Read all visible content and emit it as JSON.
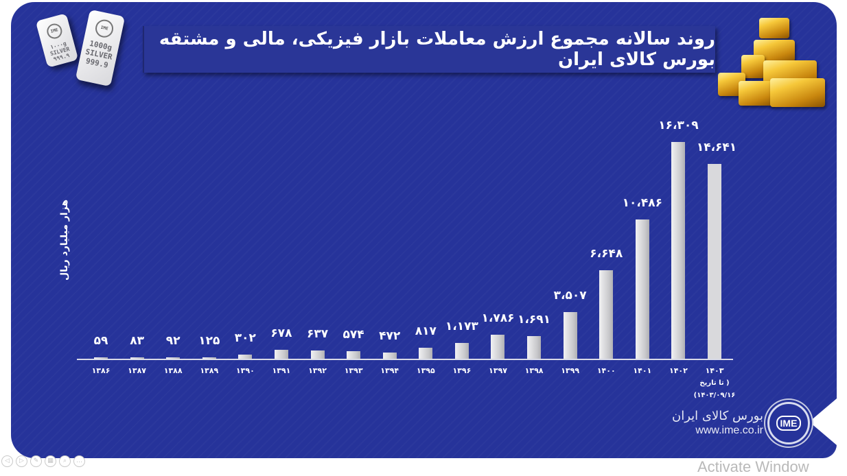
{
  "title": "روند سالانه مجموع ارزش معاملات بازار فیزیکی، مالی و مشتقه بورس کالای ایران",
  "decor": {
    "silver_bar_small": "۱۰۰۰g SILVER ۹۹۹.۹",
    "silver_bar_large_lines": [
      "1000g",
      "SILVER",
      "999.9"
    ],
    "silver_logo": "IME",
    "gold_bars_icon": "gold-bars"
  },
  "chart_data": {
    "type": "bar",
    "title": "روند سالانه مجموع ارزش معاملات بازار فیزیکی، مالی و مشتقه بورس کالای ایران",
    "xlabel": "",
    "ylabel": "هزار میلیارد ریال",
    "categories": [
      "۱۳۸۶",
      "۱۳۸۷",
      "۱۳۸۸",
      "۱۳۸۹",
      "۱۳۹۰",
      "۱۳۹۱",
      "۱۳۹۲",
      "۱۳۹۳",
      "۱۳۹۴",
      "۱۳۹۵",
      "۱۳۹۶",
      "۱۳۹۷",
      "۱۳۹۸",
      "۱۳۹۹",
      "۱۴۰۰",
      "۱۴۰۱",
      "۱۴۰۲",
      "۱۴۰۳"
    ],
    "categories_latin": [
      "1386",
      "1387",
      "1388",
      "1389",
      "1390",
      "1391",
      "1392",
      "1393",
      "1394",
      "1395",
      "1396",
      "1397",
      "1398",
      "1399",
      "1400",
      "1401",
      "1402",
      "1403"
    ],
    "values": [
      59,
      83,
      92,
      125,
      302,
      678,
      637,
      574,
      472,
      817,
      1173,
      1786,
      1691,
      3507,
      6648,
      10486,
      16309,
      14641
    ],
    "value_labels": [
      "۵۹",
      "۸۳",
      "۹۲",
      "۱۲۵",
      "۳۰۲",
      "۶۷۸",
      "۶۳۷",
      "۵۷۴",
      "۴۷۲",
      "۸۱۷",
      "۱،۱۷۳",
      "۱،۷۸۶",
      "۱،۶۹۱",
      "۳،۵۰۷",
      "۶،۶۴۸",
      "۱۰،۴۸۶",
      "۱۶،۳۰۹",
      "۱۴،۶۴۱"
    ],
    "last_category_note": [
      "( تا تاریخ",
      "۱۴۰۳/۰۹/۱۶)"
    ],
    "ylim": [
      0,
      17000
    ],
    "grid": false,
    "legend": null,
    "bar_color": "#d0d0d4",
    "background_color": "#26339a"
  },
  "footer": {
    "brand_name": "بورس کالای ایران",
    "url": "www.ime.co.ir",
    "logo_text": "IME"
  },
  "viewer_toolbar": {
    "buttons": [
      "◁",
      "▷",
      "✎",
      "▦",
      "⌕",
      "…"
    ]
  },
  "watermark": "Activate Window"
}
